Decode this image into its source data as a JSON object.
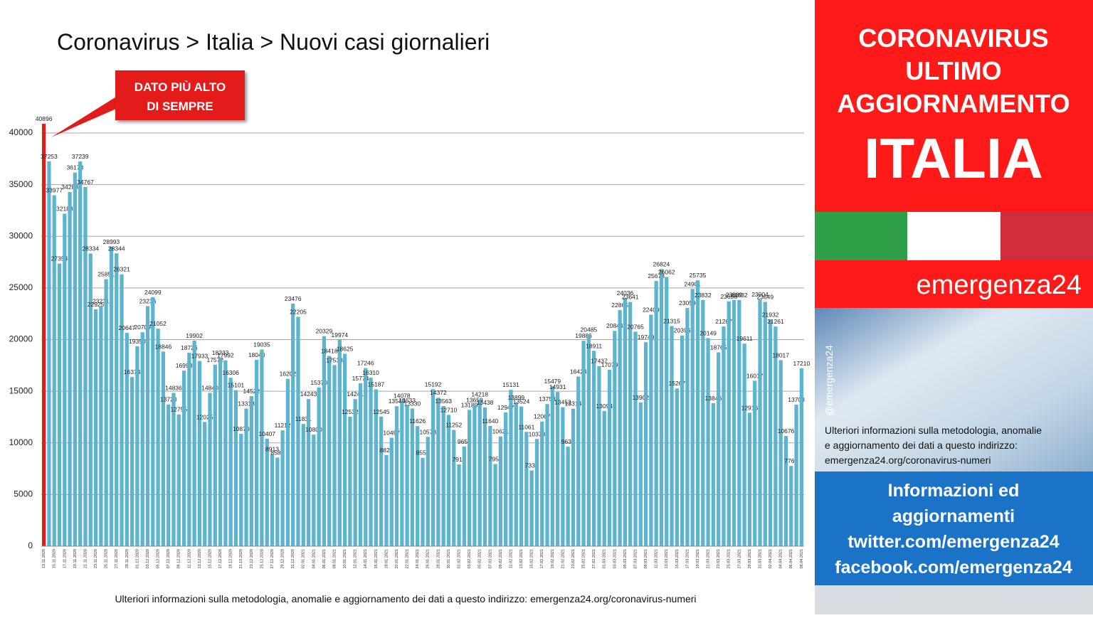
{
  "chart_data": {
    "type": "bar",
    "title": "Coronavirus > Italia > Nuovi casi giornalieri",
    "annotation": [
      "DATO PIÙ ALTO",
      "DI SEMPRE"
    ],
    "footnote": "Ulteriori informazioni sulla metodologia, anomalie e aggiornamento dei dati a questo indirizzo: emergenza24.org/coronavirus-numeri",
    "color": "#5db4cf",
    "peak_color": "#e31b1b",
    "grid": true,
    "ylim": [
      0,
      40000
    ],
    "yticks": [
      0,
      5000,
      10000,
      15000,
      20000,
      25000,
      30000,
      35000,
      40000
    ],
    "categories": [
      "13.11.2020",
      null,
      "15.11.2020",
      null,
      "17.11.2020",
      null,
      "19.11.2020",
      null,
      "21.11.2020",
      null,
      "23.11.2020",
      null,
      "25.11.2020",
      null,
      "27.11.2020",
      null,
      "29.11.2020",
      null,
      "01.12.2020",
      null,
      "03.12.2020",
      null,
      "05.12.2020",
      null,
      "07.12.2020",
      null,
      "09.12.2020",
      null,
      "11.12.2020",
      null,
      "13.12.2020",
      null,
      "15.12.2020",
      null,
      "17.12.2020",
      null,
      "19.12.2020",
      null,
      "21.12.2020",
      null,
      "23.12.2020",
      null,
      "25.12.2020",
      null,
      "27.12.2020",
      null,
      "29.12.2020",
      null,
      "31.12.2020",
      null,
      "02.01.2021",
      null,
      "04.01.2021",
      null,
      "06.01.2021",
      null,
      "08.01.2021",
      null,
      "10.01.2021",
      null,
      "12.01.2021",
      null,
      "14.01.2021",
      null,
      "16.01.2021",
      null,
      "18.01.2021",
      null,
      "20.01.2021",
      null,
      "22.01.2021",
      null,
      "24.01.2021",
      null,
      "26.01.2021",
      null,
      "28.01.2021",
      null,
      "30.01.2021",
      null,
      "01.02.2021",
      null,
      "03.02.2021",
      null,
      "05.02.2021",
      null,
      "07.02.2021",
      null,
      "09.02.2021",
      null,
      "11.02.2021",
      null,
      "13.02.2021",
      null,
      "15.02.2021",
      null,
      "17.02.2021",
      null,
      "19.02.2021",
      null,
      "21.02.2021",
      null,
      "23.02.2021",
      null,
      "25.02.2021",
      null,
      "27.02.2021",
      null,
      "01.03.2021",
      null,
      "03.03.2021",
      null,
      "05.03.2021",
      null,
      "07.03.2021",
      null,
      "09.03.2021",
      null,
      "11.03.2021",
      null,
      "13.03.2021",
      null,
      "15.03.2021",
      null,
      "17.03.2021",
      null,
      "19.03.2021",
      null,
      "21.03.2021",
      null,
      "23.03.2021",
      null,
      "25.03.2021",
      null,
      "27.03.2021",
      null,
      "29.03.2021",
      null,
      "31.03.2021",
      null,
      "02.04.2021",
      null,
      "04.04.2021",
      null,
      "06.04.2021",
      null,
      "08.04.2021"
    ],
    "values": [
      40896,
      37253,
      33977,
      27354,
      32188,
      34283,
      36173,
      37239,
      34767,
      28334,
      22925,
      23231,
      25851,
      28993,
      28344,
      26321,
      20647,
      16374,
      19350,
      20709,
      23236,
      24099,
      21052,
      18846,
      13720,
      14836,
      12755,
      16998,
      18726,
      19902,
      17933,
      12025,
      14840,
      17572,
      18233,
      17992,
      16306,
      15101,
      10870,
      13318,
      14522,
      18040,
      19035,
      10407,
      8913,
      8583,
      11212,
      16202,
      23476,
      22205,
      11831,
      14243,
      10800,
      15370,
      20329,
      18418,
      17533,
      19974,
      18625,
      12532,
      14241,
      15774,
      17246,
      16310,
      15187,
      12545,
      8824,
      10497,
      13548,
      14078,
      13633,
      13330,
      11626,
      8555,
      10578,
      15192,
      14372,
      13563,
      12710,
      11252,
      7916,
      9653,
      13189,
      13659,
      14218,
      13438,
      11640,
      7952,
      10621,
      12947,
      15131,
      13899,
      13524,
      11061,
      7333,
      10378,
      12067,
      13753,
      15479,
      14931,
      13452,
      9630,
      13314,
      16424,
      19886,
      20485,
      18911,
      17437,
      13094,
      17079,
      20844,
      22865,
      24036,
      23641,
      20765,
      13902,
      19749,
      22409,
      25673,
      26824,
      26062,
      21315,
      15267,
      20396,
      23059,
      24901,
      25735,
      23832,
      20149,
      13846,
      18765,
      21267,
      23696,
      23839,
      23832,
      19611,
      12916,
      16017,
      23904,
      23649,
      21932,
      21261,
      18017,
      10676,
      7767,
      13708,
      17210
    ]
  },
  "panel": {
    "headline": [
      "CORONAVIRUS",
      "ULTIMO",
      "AGGIORNAMENTO"
    ],
    "country": "ITALIA",
    "brand": "emergenza24",
    "handle": "@emergenza24",
    "info": [
      "Ulteriori informazioni sulla metodologia, anomalie",
      "e aggiornamento dei dati a questo indirizzo:",
      "emergenza24.org/coronavirus-numeri"
    ],
    "social": [
      "Informazioni ed",
      "aggiornamenti",
      "twitter.com/emergenza24",
      "facebook.com/emergenza24"
    ]
  }
}
